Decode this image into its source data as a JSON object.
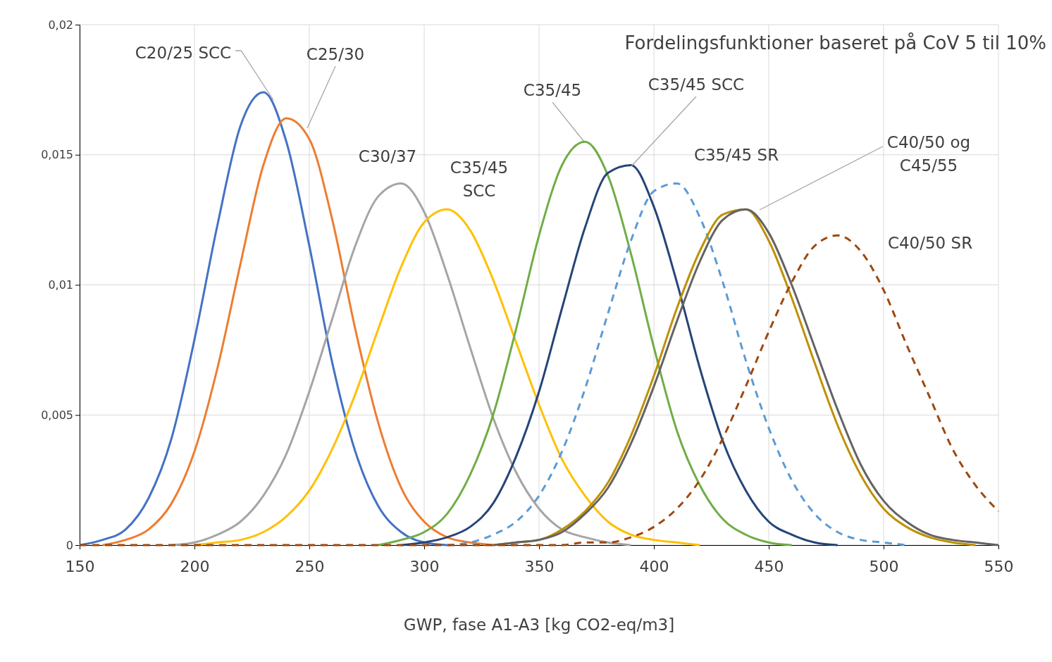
{
  "chart_data": {
    "type": "line",
    "title": "Fordelingsfunktioner baseret på CoV 5 til 10%",
    "xlabel": "GWP, fase A1-A3 [kg CO2-eq/m3]",
    "x": [
      150,
      160,
      170,
      180,
      190,
      200,
      210,
      220,
      230,
      240,
      250,
      260,
      270,
      280,
      290,
      300,
      310,
      320,
      330,
      340,
      350,
      360,
      370,
      380,
      390,
      400,
      410,
      420,
      430,
      440,
      450,
      460,
      470,
      480,
      490,
      500,
      510,
      520,
      530,
      540,
      550
    ],
    "xlim": [
      150,
      550
    ],
    "xticks": [
      150,
      200,
      250,
      300,
      350,
      400,
      450,
      500,
      550
    ],
    "ylim": [
      0,
      0.02
    ],
    "yticks": [
      0,
      {
        "value": 0.005,
        "label": "0,005"
      },
      {
        "value": 0.01,
        "label": "0,01"
      },
      {
        "value": 0.015,
        "label": "0,015"
      },
      {
        "value": 0.02,
        "label": "0,02"
      }
    ],
    "grid": true,
    "legend": false,
    "marker": "none",
    "line_style": "solid",
    "series": [
      {
        "name": "C20/25 SCC",
        "color": "#4472c4",
        "values": [
          0,
          0.0002,
          0.0006,
          0.0018,
          0.0041,
          0.0079,
          0.0123,
          0.0161,
          0.0174,
          0.0155,
          0.0115,
          0.007,
          0.0036,
          0.0015,
          0.0005,
          0.0001,
          0,
          null,
          null,
          null,
          null,
          null,
          null,
          null,
          null,
          null,
          null,
          null,
          null,
          null,
          null,
          null,
          null,
          null,
          null,
          null,
          null,
          null,
          null,
          null,
          null
        ]
      },
      {
        "name": "C25/30",
        "color": "#ed7d31",
        "values": [
          null,
          0,
          0.0002,
          0.0006,
          0.0016,
          0.0036,
          0.0068,
          0.0108,
          0.0146,
          0.0164,
          0.0156,
          0.0125,
          0.0083,
          0.0047,
          0.0022,
          0.0009,
          0.0003,
          0.0001,
          0,
          null,
          null,
          null,
          null,
          null,
          null,
          null,
          null,
          null,
          null,
          null,
          null,
          null,
          null,
          null,
          null,
          null,
          null,
          null,
          null,
          null,
          null
        ]
      },
      {
        "name": "C30/37",
        "color": "#a5a5a5",
        "values": [
          null,
          null,
          null,
          null,
          0,
          0.0001,
          0.0004,
          0.0009,
          0.0019,
          0.0035,
          0.0059,
          0.0087,
          0.0115,
          0.0134,
          0.0139,
          0.0128,
          0.0104,
          0.0076,
          0.0049,
          0.0028,
          0.0014,
          0.0006,
          0.0003,
          0.0001,
          0,
          null,
          null,
          null,
          null,
          null,
          null,
          null,
          null,
          null,
          null,
          null,
          null,
          null,
          null,
          null,
          null
        ]
      },
      {
        "name": "C35/45 SCC",
        "color": "#ffc000",
        "values": [
          null,
          null,
          null,
          null,
          null,
          0,
          0.0001,
          0.0002,
          0.0005,
          0.0011,
          0.0021,
          0.0037,
          0.0058,
          0.0083,
          0.0107,
          0.0124,
          0.0129,
          0.0121,
          0.0102,
          0.0078,
          0.0054,
          0.0033,
          0.0019,
          0.0009,
          0.0004,
          0.0002,
          0.0001,
          0,
          null,
          null,
          null,
          null,
          null,
          null,
          null,
          null,
          null,
          null,
          null,
          null,
          null
        ]
      },
      {
        "name": "C35/45",
        "color": "#70ad47",
        "values": [
          null,
          null,
          null,
          null,
          null,
          null,
          null,
          null,
          null,
          null,
          null,
          null,
          null,
          0,
          0.0002,
          0.0005,
          0.0012,
          0.0027,
          0.005,
          0.0083,
          0.0119,
          0.0146,
          0.0155,
          0.0142,
          0.0112,
          0.0076,
          0.0044,
          0.0023,
          0.001,
          0.0004,
          0.0001,
          0,
          null,
          null,
          null,
          null,
          null,
          null,
          null,
          null,
          null
        ]
      },
      {
        "name": "C35/45 SCC",
        "color": "#264478",
        "values": [
          null,
          null,
          null,
          null,
          null,
          null,
          null,
          null,
          null,
          null,
          null,
          null,
          null,
          null,
          0,
          0.0001,
          0.0003,
          0.0007,
          0.0016,
          0.0034,
          0.0059,
          0.0091,
          0.0122,
          0.0143,
          0.0146,
          0.013,
          0.0101,
          0.0068,
          0.004,
          0.0021,
          0.0009,
          0.0004,
          0.0001,
          0,
          null,
          null,
          null,
          null,
          null,
          null,
          null
        ]
      },
      {
        "name": "C35/45 SR",
        "color": "#5b9bd5",
        "line_style": "dashed",
        "values": [
          null,
          null,
          null,
          null,
          null,
          null,
          null,
          null,
          null,
          null,
          null,
          null,
          null,
          null,
          null,
          null,
          0,
          0.0001,
          0.0004,
          0.0009,
          0.0019,
          0.0036,
          0.006,
          0.0089,
          0.0117,
          0.0136,
          0.0139,
          0.0126,
          0.0101,
          0.0071,
          0.0045,
          0.0025,
          0.0012,
          0.0005,
          0.0002,
          0.0001,
          0,
          null,
          null,
          null,
          null
        ]
      },
      {
        "name": "C40/50 og C45/55",
        "color": "#bf9000",
        "values": [
          null,
          null,
          null,
          null,
          null,
          null,
          null,
          null,
          null,
          null,
          null,
          null,
          null,
          null,
          null,
          null,
          null,
          null,
          0,
          0.0001,
          0.0002,
          0.0006,
          0.0013,
          0.0024,
          0.0042,
          0.0065,
          0.0091,
          0.0113,
          0.0127,
          0.0129,
          0.0117,
          0.0095,
          0.007,
          0.0046,
          0.0027,
          0.0014,
          0.0007,
          0.0003,
          0.0001,
          0,
          null
        ]
      },
      {
        "color": "#636363",
        "values": [
          null,
          null,
          null,
          null,
          null,
          null,
          null,
          null,
          null,
          null,
          null,
          null,
          null,
          null,
          null,
          null,
          null,
          null,
          0,
          0.0001,
          0.0002,
          0.0005,
          0.0012,
          0.0022,
          0.0039,
          0.0061,
          0.0086,
          0.0109,
          0.0125,
          0.0129,
          0.012,
          0.01,
          0.0076,
          0.0052,
          0.0031,
          0.0017,
          0.0009,
          0.0004,
          0.0002,
          0.0001,
          0
        ]
      },
      {
        "name": "C40/50 SR",
        "color": "#9e480e",
        "line_style": "dashed",
        "values": [
          0,
          0,
          0,
          0,
          0,
          0,
          0,
          0,
          0,
          0,
          0,
          0,
          0,
          0,
          0,
          0,
          0,
          0,
          0,
          0,
          0,
          0,
          0.0001,
          0.0001,
          0.0003,
          0.0007,
          0.0014,
          0.0025,
          0.0041,
          0.0061,
          0.0082,
          0.0101,
          0.0115,
          0.0119,
          0.0113,
          0.0098,
          0.0077,
          0.0057,
          0.0037,
          0.0023,
          0.0013
        ]
      }
    ]
  }
}
